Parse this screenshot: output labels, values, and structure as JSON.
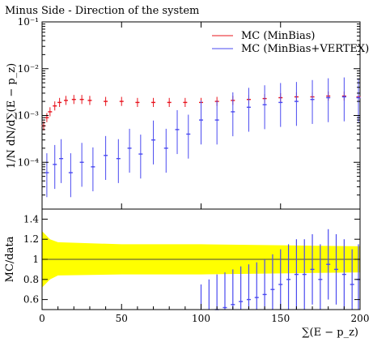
{
  "chart_data": [
    {
      "type": "line",
      "title": "Minus Side - Direction of the system",
      "xlabel": "",
      "ylabel": "1/N dN/d∑(E − p_z)",
      "y_scale": "log",
      "ylim": [
        1e-05,
        0.1
      ],
      "xlim": [
        0,
        200
      ],
      "y_tick_labels": [
        "10⁻¹",
        "10⁻²",
        "10⁻³",
        "10⁻⁴"
      ],
      "legend_position": "top-right",
      "series": [
        {
          "name": "MC (MinBias)",
          "color": "#e8141e",
          "error_bars": true,
          "x": [
            1,
            3,
            5,
            8,
            11,
            15,
            20,
            25,
            30,
            40,
            50,
            60,
            70,
            80,
            90,
            100,
            110,
            120,
            130,
            140,
            150,
            160,
            170,
            180,
            190,
            199
          ],
          "values": [
            0.0006,
            0.0009,
            0.0012,
            0.0016,
            0.0019,
            0.0021,
            0.0022,
            0.0022,
            0.0021,
            0.002,
            0.002,
            0.0019,
            0.0019,
            0.0019,
            0.0019,
            0.0019,
            0.002,
            0.0021,
            0.0022,
            0.0023,
            0.0024,
            0.0025,
            0.0025,
            0.0026,
            0.0026,
            0.0025
          ]
        },
        {
          "name": "MC (MinBias+VERTEX)",
          "color": "#4a4af0",
          "error_bars": true,
          "x": [
            3,
            8,
            12,
            18,
            25,
            32,
            40,
            48,
            55,
            62,
            70,
            78,
            85,
            92,
            100,
            110,
            120,
            130,
            140,
            150,
            160,
            170,
            180,
            190,
            199
          ],
          "values": [
            6e-05,
            9e-05,
            0.00012,
            6e-05,
            0.0001,
            8e-05,
            0.00014,
            0.00012,
            0.0002,
            0.00015,
            0.0003,
            0.0002,
            0.0005,
            0.0004,
            0.0008,
            0.0008,
            0.0012,
            0.0015,
            0.0017,
            0.0019,
            0.002,
            0.0022,
            0.0024,
            0.0025,
            0.0024
          ]
        }
      ]
    },
    {
      "type": "line",
      "xlabel": "∑(E − p_z)",
      "ylabel": "MC/data",
      "xlim": [
        0,
        200
      ],
      "ylim": [
        0.5,
        1.5
      ],
      "x_ticks": [
        0,
        50,
        100,
        150,
        200
      ],
      "y_ticks": [
        0.6,
        0.8,
        1,
        1.2,
        1.4
      ],
      "reference_line": 1,
      "band": {
        "color": "#ffff00",
        "x": [
          0,
          5,
          10,
          50,
          100,
          150,
          200
        ],
        "lower": [
          0.72,
          0.8,
          0.84,
          0.85,
          0.85,
          0.86,
          0.87
        ],
        "upper": [
          1.28,
          1.2,
          1.17,
          1.15,
          1.15,
          1.14,
          1.13
        ]
      },
      "series": [
        {
          "name": "MC (MinBias+VERTEX)",
          "color": "#4a4af0",
          "error_bars": true,
          "x": [
            100,
            105,
            110,
            115,
            120,
            125,
            130,
            135,
            140,
            145,
            150,
            155,
            160,
            165,
            170,
            175,
            180,
            185,
            190,
            195,
            199
          ],
          "values": [
            0.4,
            0.45,
            0.5,
            0.52,
            0.55,
            0.58,
            0.6,
            0.62,
            0.65,
            0.7,
            0.75,
            0.8,
            0.85,
            0.85,
            0.9,
            0.8,
            0.95,
            0.9,
            0.85,
            0.75,
            0.8
          ]
        }
      ]
    }
  ]
}
